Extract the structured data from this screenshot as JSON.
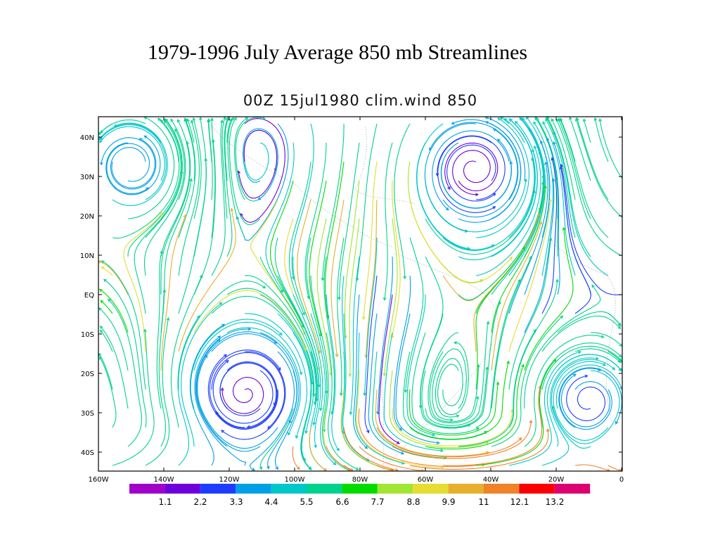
{
  "slide_title": "1979-1996 July Average 850 mb Streamlines",
  "plot_title": "00Z  15jul1980  clim.wind  850",
  "map": {
    "lon_ticks": [
      "160W",
      "140W",
      "120W",
      "100W",
      "80W",
      "60W",
      "40W",
      "20W",
      "0"
    ],
    "lat_ticks": [
      "40N",
      "30N",
      "20N",
      "10N",
      "EQ",
      "10S",
      "20S",
      "30S",
      "40S"
    ]
  },
  "colorbar": {
    "colors": [
      "#a000c8",
      "#6e00dc",
      "#1e3cff",
      "#00a0e6",
      "#00c8c8",
      "#00d28c",
      "#00dc00",
      "#a0e632",
      "#e6dc32",
      "#e6af2d",
      "#f08228",
      "#fa0000",
      "#dc0070"
    ],
    "labels": [
      "1.1",
      "2.2",
      "3.3",
      "4.4",
      "5.5",
      "6.6",
      "7.7",
      "8.8",
      "9.9",
      "11",
      "12.1",
      "13.2"
    ]
  }
}
